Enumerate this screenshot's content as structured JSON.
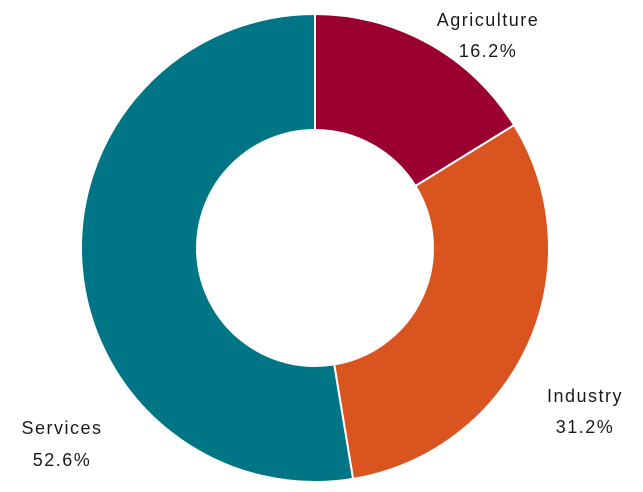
{
  "chart_data": {
    "type": "pie",
    "variant": "donut",
    "title": "",
    "slices": [
      {
        "label": "Agriculture",
        "value": 16.2,
        "value_label": "16.2%",
        "color": "#9a0030"
      },
      {
        "label": "Industry",
        "value": 31.2,
        "value_label": "31.2%",
        "color": "#d9541e"
      },
      {
        "label": "Services",
        "value": 52.6,
        "value_label": "52.6%",
        "color": "#007585"
      }
    ],
    "start_angle": "12 o'clock",
    "direction": "clockwise",
    "legend": "none (labels beside slices)"
  }
}
